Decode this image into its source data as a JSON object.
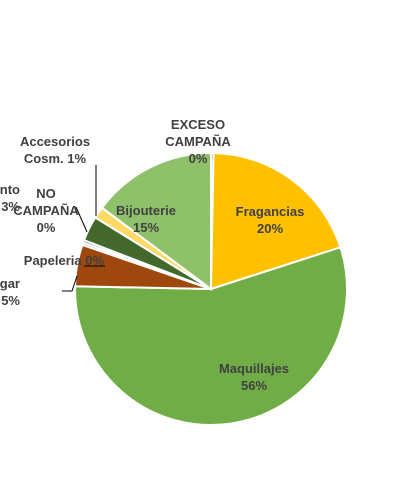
{
  "chart_data": {
    "type": "pie",
    "title": "",
    "start_angle_deg": 0,
    "direction": "clockwise",
    "slice_border_color": "#ffffff",
    "label_color": "#404040",
    "leader_line_color": "#000000",
    "slices": [
      {
        "name": "EXCESO CAMPAÑA",
        "label_lines": [
          "EXCESO",
          "CAMPAÑA",
          "0%"
        ],
        "value": 0.3,
        "color": "#5b9bd5"
      },
      {
        "name": "Fragancias",
        "label_lines": [
          "Fragancias",
          "20%"
        ],
        "value": 20,
        "color": "#ffc000"
      },
      {
        "name": "Maquillajes",
        "label_lines": [
          "Maquillajes",
          "56%"
        ],
        "value": 56,
        "color": "#70ad47"
      },
      {
        "name": "…a y Hogar",
        "label_lines": [
          "a y Hogar",
          "5%"
        ],
        "value": 5,
        "color": "#9e480e"
      },
      {
        "name": "Papeleria",
        "label_lines": [
          "Papeleria 0%"
        ],
        "value": 0.3,
        "color": "#a5a5a5"
      },
      {
        "name": "NO CAMPAÑA",
        "label_lines": [
          "NO",
          "CAMPAÑA",
          "0%"
        ],
        "value": 0.3,
        "color": "#264478"
      },
      {
        "name": "…amiento",
        "label_lines": [
          "amiento",
          "3%"
        ],
        "value": 3,
        "color": "#43682b"
      },
      {
        "name": "Accesorios Cosm.",
        "label_lines": [
          "Accesorios",
          "Cosm. 1%"
        ],
        "value": 1.4,
        "color": "#ffd966"
      },
      {
        "name": "Bijouterie",
        "label_lines": [
          "Bijouterie",
          "15%"
        ],
        "value": 15,
        "color": "#8fc16b"
      }
    ]
  }
}
